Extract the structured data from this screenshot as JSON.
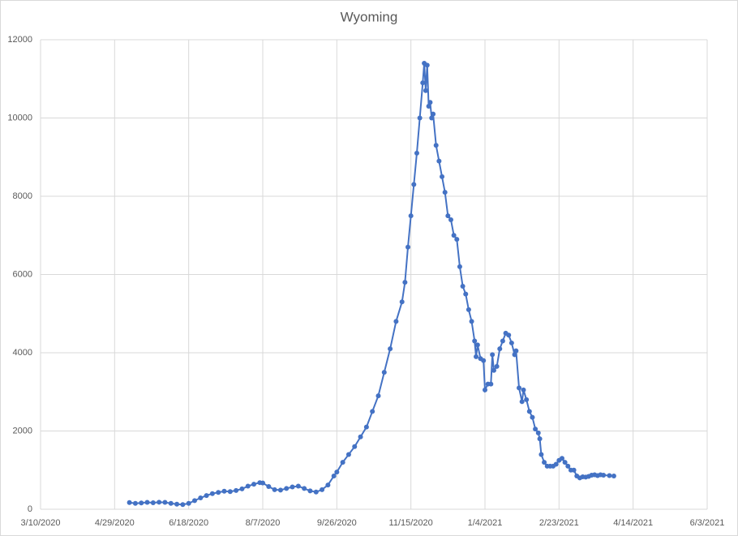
{
  "chart_data": {
    "type": "line",
    "title": "Wyoming",
    "x": [
      "5/9/2020",
      "5/13/2020",
      "5/17/2020",
      "5/21/2020",
      "5/25/2020",
      "5/29/2020",
      "6/2/2020",
      "6/6/2020",
      "6/10/2020",
      "6/14/2020",
      "6/18/2020",
      "6/22/2020",
      "6/26/2020",
      "6/30/2020",
      "7/4/2020",
      "7/8/2020",
      "7/12/2020",
      "7/16/2020",
      "7/20/2020",
      "7/24/2020",
      "7/28/2020",
      "8/1/2020",
      "8/5/2020",
      "8/7/2020",
      "8/11/2020",
      "8/15/2020",
      "8/19/2020",
      "8/23/2020",
      "8/27/2020",
      "8/31/2020",
      "9/4/2020",
      "9/8/2020",
      "9/12/2020",
      "9/16/2020",
      "9/20/2020",
      "9/24/2020",
      "9/26/2020",
      "9/30/2020",
      "10/4/2020",
      "10/8/2020",
      "10/12/2020",
      "10/16/2020",
      "10/20/2020",
      "10/24/2020",
      "10/28/2020",
      "11/1/2020",
      "11/5/2020",
      "11/9/2020",
      "11/11/2020",
      "11/13/2020",
      "11/15/2020",
      "11/17/2020",
      "11/19/2020",
      "11/21/2020",
      "11/23/2020",
      "11/24/2020",
      "11/25/2020",
      "11/26/2020",
      "11/27/2020",
      "11/28/2020",
      "11/29/2020",
      "11/30/2020",
      "12/2/2020",
      "12/4/2020",
      "12/6/2020",
      "12/8/2020",
      "12/10/2020",
      "12/12/2020",
      "12/14/2020",
      "12/16/2020",
      "12/18/2020",
      "12/20/2020",
      "12/22/2020",
      "12/24/2020",
      "12/26/2020",
      "12/28/2020",
      "12/29/2020",
      "12/30/2020",
      "1/1/2021",
      "1/3/2021",
      "1/4/2021",
      "1/6/2021",
      "1/8/2021",
      "1/9/2021",
      "1/10/2021",
      "1/12/2021",
      "1/14/2021",
      "1/16/2021",
      "1/18/2021",
      "1/20/2021",
      "1/22/2021",
      "1/24/2021",
      "1/25/2021",
      "1/27/2021",
      "1/29/2021",
      "1/30/2021",
      "2/1/2021",
      "2/3/2021",
      "2/5/2021",
      "2/7/2021",
      "2/9/2021",
      "2/10/2021",
      "2/11/2021",
      "2/13/2021",
      "2/15/2021",
      "2/17/2021",
      "2/19/2021",
      "2/21/2021",
      "2/23/2021",
      "2/25/2021",
      "2/27/2021",
      "3/1/2021",
      "3/3/2021",
      "3/5/2021",
      "3/7/2021",
      "3/9/2021",
      "3/11/2021",
      "3/13/2021",
      "3/15/2021",
      "3/17/2021",
      "3/19/2021",
      "3/21/2021",
      "3/23/2021",
      "3/25/2021",
      "3/29/2021",
      "4/1/2021"
    ],
    "series": [
      {
        "color": "#4472c4",
        "values": [
          170,
          150,
          160,
          175,
          165,
          180,
          175,
          150,
          130,
          120,
          150,
          220,
          290,
          350,
          400,
          430,
          460,
          450,
          480,
          520,
          590,
          640,
          680,
          670,
          580,
          500,
          490,
          530,
          570,
          590,
          530,
          470,
          440,
          500,
          620,
          850,
          950,
          1200,
          1400,
          1600,
          1850,
          2100,
          2500,
          2900,
          3500,
          4100,
          4800,
          5300,
          5800,
          6700,
          7500,
          8300,
          9100,
          10000,
          10900,
          11400,
          10700,
          11350,
          10300,
          10400,
          10000,
          10100,
          9300,
          8900,
          8500,
          8100,
          7500,
          7400,
          7000,
          6900,
          6200,
          5700,
          5500,
          5100,
          4800,
          4300,
          3900,
          4200,
          3850,
          3800,
          3050,
          3200,
          3200,
          3950,
          3550,
          3650,
          4100,
          4300,
          4500,
          4450,
          4250,
          3950,
          4050,
          3100,
          2750,
          3050,
          2800,
          2500,
          2350,
          2050,
          1950,
          1800,
          1400,
          1200,
          1100,
          1100,
          1100,
          1150,
          1250,
          1300,
          1200,
          1100,
          1000,
          1000,
          850,
          800,
          830,
          820,
          840,
          870,
          880,
          860,
          880,
          870,
          860,
          850
        ]
      }
    ],
    "xlim": [
      "3/10/2020",
      "6/3/2021"
    ],
    "xticks": [
      "3/10/2020",
      "4/29/2020",
      "6/18/2020",
      "8/7/2020",
      "9/26/2020",
      "11/15/2020",
      "1/4/2021",
      "2/23/2021",
      "4/14/2021",
      "6/3/2021"
    ],
    "ylim": [
      0,
      12000
    ],
    "yticks": [
      0,
      2000,
      4000,
      6000,
      8000,
      10000,
      12000
    ],
    "grid": true
  }
}
